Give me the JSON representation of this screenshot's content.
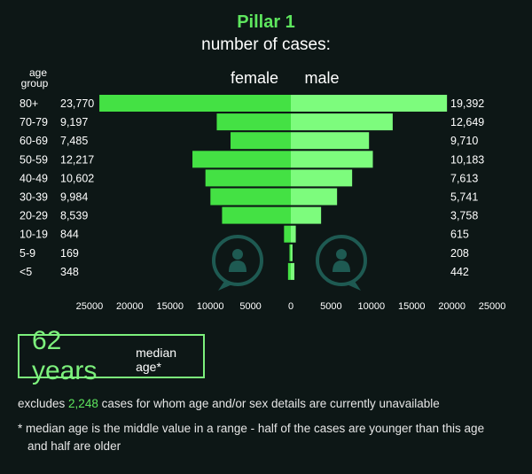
{
  "header": {
    "title": "Pillar 1",
    "subtitle": "number of cases:"
  },
  "chart_data": {
    "type": "bar",
    "orientation": "horizontal-pyramid",
    "ylabel": [
      "age",
      "group"
    ],
    "categories": [
      "80+",
      "70-79",
      "60-69",
      "50-59",
      "40-49",
      "30-39",
      "20-29",
      "10-19",
      "5-9",
      "<5"
    ],
    "series": [
      {
        "name": "female",
        "values": [
          23770,
          9197,
          7485,
          12217,
          10602,
          9984,
          8539,
          844,
          169,
          348
        ],
        "labels": [
          "23,770",
          "9,197",
          "7,485",
          "12,217",
          "10,602",
          "9,984",
          "8,539",
          "844",
          "169",
          "348"
        ],
        "color": "#44e144"
      },
      {
        "name": "male",
        "values": [
          19392,
          12649,
          9710,
          10183,
          7613,
          5741,
          3758,
          615,
          208,
          442
        ],
        "labels": [
          "19,392",
          "12,649",
          "9,710",
          "10,183",
          "7,613",
          "5,741",
          "3,758",
          "615",
          "208",
          "442"
        ],
        "color": "#7dfc7d"
      }
    ],
    "x_ticks_left": [
      "25000",
      "20000",
      "15000",
      "10000",
      "5000",
      "0"
    ],
    "x_ticks_right": [
      "5000",
      "10000",
      "15000",
      "20000",
      "25000"
    ],
    "xlim": [
      0,
      25000
    ],
    "grid": false
  },
  "median": {
    "value": "62 years",
    "label": "median age*"
  },
  "notes": {
    "excludes_pre": "excludes ",
    "excludes_count": "2,248",
    "excludes_post": " cases for whom age and/or sex details are currently unavailable",
    "footnote_line1": "* median age is the middle value in a range - half of the cases are younger than this age",
    "footnote_line2": "and half are older"
  },
  "colors": {
    "background": "#0d1716",
    "female_bar": "#44e144",
    "male_bar": "#7dfc7d",
    "accent": "#5ee65e",
    "icon": "#1e5a52"
  },
  "icons": {
    "female": "female-person-icon",
    "male": "male-person-icon"
  }
}
